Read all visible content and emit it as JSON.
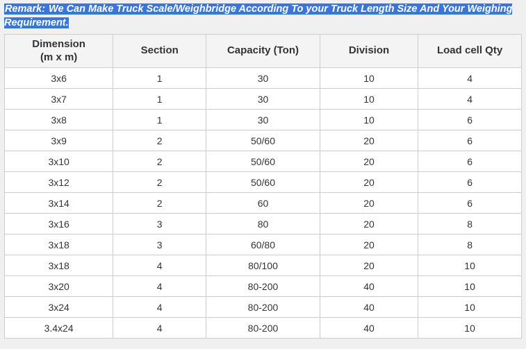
{
  "remark": {
    "label": "Remark:",
    "text": " We Can Make Truck Scale/Weighbridge According To your Truck Length Size And Your Weighing Requirement."
  },
  "table": {
    "headers": {
      "dimension_line1": "Dimension",
      "dimension_line2": "(m x m)",
      "section": "Section",
      "capacity": "Capacity (Ton)",
      "division": "Division",
      "loadcell": "Load cell Qty"
    },
    "rows": [
      {
        "dimension": "3x6",
        "section": "1",
        "capacity": "30",
        "division": "10",
        "loadcell": "4"
      },
      {
        "dimension": "3x7",
        "section": "1",
        "capacity": "30",
        "division": "10",
        "loadcell": "4"
      },
      {
        "dimension": "3x8",
        "section": "1",
        "capacity": "30",
        "division": "10",
        "loadcell": "6"
      },
      {
        "dimension": "3x9",
        "section": "2",
        "capacity": "50/60",
        "division": "20",
        "loadcell": "6"
      },
      {
        "dimension": "3x10",
        "section": "2",
        "capacity": "50/60",
        "division": "20",
        "loadcell": "6"
      },
      {
        "dimension": "3x12",
        "section": "2",
        "capacity": "50/60",
        "division": "20",
        "loadcell": "6"
      },
      {
        "dimension": "3x14",
        "section": "2",
        "capacity": "60",
        "division": "20",
        "loadcell": "6"
      },
      {
        "dimension": "3x16",
        "section": "3",
        "capacity": "80",
        "division": "20",
        "loadcell": "8"
      },
      {
        "dimension": "3x18",
        "section": "3",
        "capacity": "60/80",
        "division": "20",
        "loadcell": "8"
      },
      {
        "dimension": "3x18",
        "section": "4",
        "capacity": "80/100",
        "division": "20",
        "loadcell": "10"
      },
      {
        "dimension": "3x20",
        "section": "4",
        "capacity": "80-200",
        "division": "40",
        "loadcell": "10"
      },
      {
        "dimension": "3x24",
        "section": "4",
        "capacity": "80-200",
        "division": "40",
        "loadcell": "10"
      },
      {
        "dimension": "3.4x24",
        "section": "4",
        "capacity": "80-200",
        "division": "40",
        "loadcell": "10"
      }
    ]
  }
}
